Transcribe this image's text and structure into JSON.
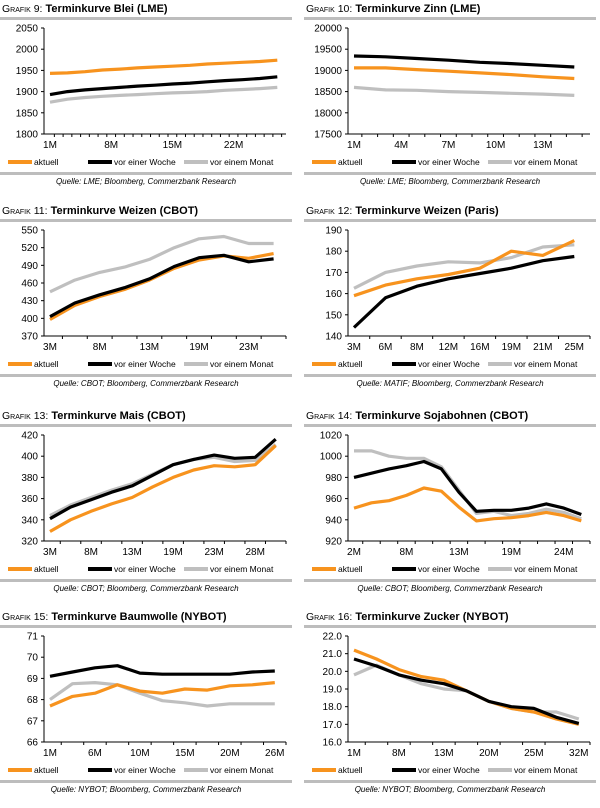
{
  "legend_labels": [
    "aktuell",
    "vor einer Woche",
    "vor einem Monat"
  ],
  "series_colors": [
    "#f7931e",
    "#000000",
    "#bfbfbf"
  ],
  "chart_data": [
    {
      "id": "g9",
      "type": "line",
      "title_prefix": "Grafik 9:",
      "title": "Terminkurve Blei (LME)",
      "source": "Quelle: LME; Bloomberg, Commerzbank Research",
      "ylim": [
        1800,
        2050
      ],
      "yticks": [
        "1800",
        "1850",
        "1900",
        "1950",
        "2000",
        "2050"
      ],
      "xlabels": [
        "1M",
        "8M",
        "15M",
        "22M"
      ],
      "xlabel_pos": [
        0,
        7,
        14,
        21
      ],
      "xmax": 27,
      "xspan": [
        0,
        26
      ],
      "xlabel": "",
      "ylabel": "",
      "grid": false,
      "legend": "bottom",
      "x": [
        0,
        2,
        4,
        6,
        8,
        10,
        12,
        14,
        16,
        18,
        20,
        22,
        24,
        26
      ],
      "series": [
        {
          "name": "aktuell",
          "values": [
            1943,
            1944,
            1947,
            1951,
            1953,
            1956,
            1958,
            1960,
            1962,
            1965,
            1967,
            1969,
            1971,
            1974
          ]
        },
        {
          "name": "vor einer Woche",
          "values": [
            1893,
            1900,
            1904,
            1907,
            1910,
            1913,
            1915,
            1918,
            1920,
            1923,
            1926,
            1928,
            1931,
            1935
          ]
        },
        {
          "name": "vor einem Monat",
          "values": [
            1875,
            1882,
            1886,
            1889,
            1891,
            1893,
            1895,
            1897,
            1898,
            1900,
            1903,
            1905,
            1907,
            1910
          ]
        }
      ]
    },
    {
      "id": "g10",
      "type": "line",
      "title_prefix": "Grafik 10:",
      "title": "Terminkurve Zinn (LME)",
      "source": "Quelle: LME; Bloomberg, Commerzbank Research",
      "ylim": [
        17500,
        20000
      ],
      "yticks": [
        "17500",
        "18000",
        "18500",
        "19000",
        "19500",
        "20000"
      ],
      "xlabels": [
        "1M",
        "4M",
        "7M",
        "10M",
        "13M"
      ],
      "xlabel_pos": [
        0,
        3,
        6,
        9,
        12
      ],
      "xmax": 15,
      "xspan": [
        0,
        14
      ],
      "xlabel": "",
      "ylabel": "",
      "grid": false,
      "legend": "bottom",
      "x": [
        0,
        2,
        4,
        6,
        8,
        10,
        12,
        14
      ],
      "series": [
        {
          "name": "aktuell",
          "values": [
            19060,
            19060,
            19020,
            18980,
            18940,
            18900,
            18850,
            18810
          ]
        },
        {
          "name": "vor einer Woche",
          "values": [
            19340,
            19320,
            19280,
            19240,
            19190,
            19160,
            19120,
            19080
          ]
        },
        {
          "name": "vor einem Monat",
          "values": [
            18600,
            18540,
            18530,
            18500,
            18480,
            18460,
            18440,
            18410
          ]
        }
      ]
    },
    {
      "id": "g11",
      "type": "line",
      "title_prefix": "Grafik 11:",
      "title": "Terminkurve Weizen (CBOT)",
      "source": "Quelle: CBOT; Bloomberg, Commerzbank Research",
      "ylim": [
        370,
        550
      ],
      "yticks": [
        "370",
        "400",
        "430",
        "460",
        "490",
        "520",
        "550"
      ],
      "xlabels": [
        "3M",
        "8M",
        "13M",
        "19M",
        "23M"
      ],
      "xlabel_pos": [
        0,
        2,
        4,
        6,
        8
      ],
      "xmax": 9.5,
      "xspan": [
        0,
        9
      ],
      "xlabel": "",
      "ylabel": "",
      "grid": false,
      "legend": "bottom",
      "x": [
        0,
        1,
        2,
        3,
        4,
        5,
        6,
        7,
        8,
        9
      ],
      "series": [
        {
          "name": "aktuell",
          "values": [
            398,
            422,
            437,
            449,
            465,
            485,
            499,
            506,
            502,
            510
          ]
        },
        {
          "name": "vor einer Woche",
          "values": [
            403,
            426,
            440,
            452,
            467,
            488,
            503,
            507,
            496,
            501
          ]
        },
        {
          "name": "vor einem Monat",
          "values": [
            445,
            465,
            478,
            487,
            500,
            520,
            535,
            539,
            527,
            527
          ]
        }
      ]
    },
    {
      "id": "g12",
      "type": "line",
      "title_prefix": "Grafik 12:",
      "title": "Terminkurve Weizen (Paris)",
      "source": "Quelle: MATIF; Bloomberg, Commerzbank Research",
      "ylim": [
        140,
        190
      ],
      "yticks": [
        "140",
        "150",
        "160",
        "170",
        "180",
        "190"
      ],
      "xlabels": [
        "3M",
        "6M",
        "8M",
        "12M",
        "16M",
        "19M",
        "21M",
        "25M"
      ],
      "xlabel_pos": [
        0,
        1,
        2,
        3,
        4,
        5,
        6,
        7
      ],
      "xmax": 7.5,
      "xspan": [
        0,
        7
      ],
      "xlabel": "",
      "ylabel": "",
      "grid": false,
      "legend": "bottom",
      "x": [
        0,
        1,
        2,
        3,
        4,
        5,
        6,
        7
      ],
      "series": [
        {
          "name": "aktuell",
          "values": [
            159,
            164,
            167,
            169,
            172,
            180,
            178,
            185
          ]
        },
        {
          "name": "vor einer Woche",
          "values": [
            144,
            158,
            163.5,
            167,
            169.5,
            172,
            175.5,
            177.5
          ]
        },
        {
          "name": "vor einem Monat",
          "values": [
            162.5,
            170,
            173,
            175,
            174.5,
            177,
            182,
            183
          ]
        }
      ]
    },
    {
      "id": "g13",
      "type": "line",
      "title_prefix": "Grafik 13:",
      "title": "Terminkurve Mais (CBOT)",
      "source": "Quelle: CBOT; Bloomberg, Commerzbank Research",
      "ylim": [
        320,
        420
      ],
      "yticks": [
        "320",
        "340",
        "360",
        "380",
        "400",
        "420"
      ],
      "xlabels": [
        "3M",
        "8M",
        "13M",
        "19M",
        "23M",
        "28M"
      ],
      "xlabel_pos": [
        0,
        2,
        4,
        6,
        8,
        10
      ],
      "xmax": 11.5,
      "xspan": [
        0,
        11
      ],
      "xlabel": "",
      "ylabel": "",
      "grid": false,
      "legend": "bottom",
      "x": [
        0,
        1,
        2,
        3,
        4,
        5,
        6,
        7,
        8,
        9,
        10,
        11
      ],
      "series": [
        {
          "name": "aktuell",
          "values": [
            329,
            340,
            348,
            355,
            361,
            371,
            380,
            387,
            391,
            390,
            392,
            410
          ]
        },
        {
          "name": "vor einer Woche",
          "values": [
            341,
            352,
            359,
            366,
            372,
            382,
            392,
            397,
            401,
            398,
            399,
            416
          ]
        },
        {
          "name": "vor einem Monat",
          "values": [
            344,
            354,
            361,
            368,
            374,
            383,
            392,
            397,
            399,
            395,
            396,
            411
          ]
        }
      ]
    },
    {
      "id": "g14",
      "type": "line",
      "title_prefix": "Grafik 14:",
      "title": "Terminkurve Sojabohnen (CBOT)",
      "source": "Quelle: CBOT; Bloomberg, Commerzbank Research",
      "ylim": [
        920,
        1020
      ],
      "yticks": [
        "920",
        "940",
        "960",
        "980",
        "1000",
        "1020"
      ],
      "xlabels": [
        "2M",
        "8M",
        "13M",
        "19M",
        "24M"
      ],
      "xlabel_pos": [
        0,
        3,
        6,
        9,
        12
      ],
      "xmax": 13.5,
      "xspan": [
        0,
        13
      ],
      "xlabel": "",
      "ylabel": "",
      "grid": false,
      "legend": "bottom",
      "x": [
        0,
        1,
        2,
        3,
        4,
        5,
        6,
        7,
        8,
        9,
        10,
        11,
        12,
        13
      ],
      "series": [
        {
          "name": "aktuell",
          "values": [
            951,
            956,
            958,
            963,
            970,
            967,
            952,
            939,
            941,
            942,
            944,
            947,
            944,
            939
          ]
        },
        {
          "name": "vor einer Woche",
          "values": [
            980,
            984,
            988,
            991,
            995,
            988,
            966,
            948,
            949,
            949,
            951,
            955,
            951,
            945
          ]
        },
        {
          "name": "vor einem Monat",
          "values": [
            1005,
            1005,
            1000,
            998,
            998,
            990,
            968,
            946,
            948,
            944,
            946,
            950,
            947,
            941
          ]
        }
      ]
    },
    {
      "id": "g15",
      "type": "line",
      "title_prefix": "Grafik 15:",
      "title": "Terminkurve Baumwolle (NYBOT)",
      "source": "Quelle: NYBOT; Bloomberg, Commerzbank Research",
      "ylim": [
        66,
        71
      ],
      "yticks": [
        "66",
        "67",
        "68",
        "69",
        "70",
        "71"
      ],
      "xlabels": [
        "1M",
        "6M",
        "10M",
        "15M",
        "20M",
        "26M"
      ],
      "xlabel_pos": [
        0,
        2,
        4,
        6,
        8,
        10
      ],
      "xmax": 10.5,
      "xspan": [
        0,
        10
      ],
      "xlabel": "",
      "ylabel": "",
      "grid": false,
      "legend": "bottom",
      "x": [
        0,
        1,
        2,
        3,
        4,
        5,
        6,
        7,
        8,
        9,
        10
      ],
      "series": [
        {
          "name": "aktuell",
          "values": [
            67.7,
            68.15,
            68.3,
            68.7,
            68.4,
            68.3,
            68.5,
            68.45,
            68.65,
            68.7,
            68.8
          ]
        },
        {
          "name": "vor einer Woche",
          "values": [
            69.1,
            69.3,
            69.5,
            69.6,
            69.25,
            69.2,
            69.2,
            69.2,
            69.2,
            69.3,
            69.35
          ]
        },
        {
          "name": "vor einem Monat",
          "values": [
            68.0,
            68.75,
            68.8,
            68.7,
            68.3,
            67.95,
            67.85,
            67.7,
            67.8,
            67.8,
            67.8
          ]
        }
      ]
    },
    {
      "id": "g16",
      "type": "line",
      "title_prefix": "Grafik 16:",
      "title": "Terminkurve Zucker (NYBOT)",
      "source": "Quelle: NYBOT; Bloomberg, Commerzbank Research",
      "ylim": [
        16,
        22
      ],
      "yticks": [
        "16.0",
        "17.0",
        "18.0",
        "19.0",
        "20.0",
        "21.0",
        "22.0"
      ],
      "xlabels": [
        "1M",
        "8M",
        "13M",
        "20M",
        "25M",
        "32M"
      ],
      "xlabel_pos": [
        0,
        2,
        4,
        6,
        8,
        10
      ],
      "xmax": 10.5,
      "xspan": [
        0,
        10
      ],
      "xlabel": "",
      "ylabel": "",
      "grid": false,
      "legend": "bottom",
      "x": [
        0,
        1,
        2,
        3,
        4,
        5,
        6,
        7,
        8,
        9,
        10
      ],
      "series": [
        {
          "name": "aktuell",
          "values": [
            21.2,
            20.7,
            20.1,
            19.7,
            19.5,
            18.9,
            18.3,
            17.9,
            17.7,
            17.3,
            17.0
          ]
        },
        {
          "name": "vor einer Woche",
          "values": [
            20.7,
            20.3,
            19.8,
            19.5,
            19.3,
            18.9,
            18.3,
            18.0,
            17.9,
            17.4,
            17.05
          ]
        },
        {
          "name": "vor einem Monat",
          "values": [
            19.8,
            20.35,
            19.8,
            19.3,
            19.0,
            18.9,
            18.3,
            17.9,
            17.7,
            17.7,
            17.3
          ]
        }
      ]
    }
  ]
}
